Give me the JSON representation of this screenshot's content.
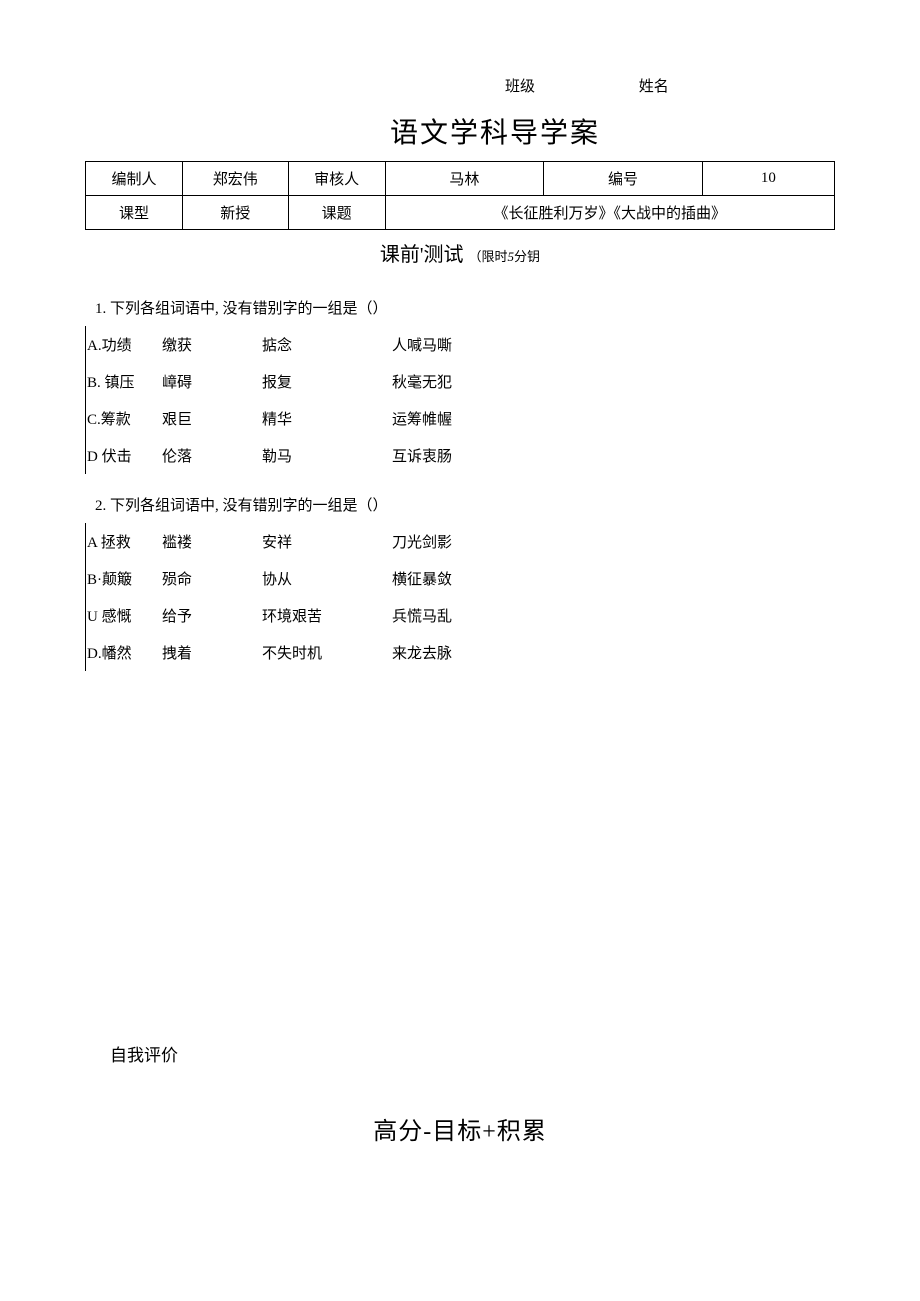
{
  "header": {
    "class_label": "班级",
    "name_label": "姓名"
  },
  "title": "语文学科导学案",
  "info_table": {
    "row1": {
      "c1": "编制人",
      "c2": "郑宏伟",
      "c3": "审核人",
      "c4": "马林",
      "c5": "编号",
      "c6": "10"
    },
    "row2": {
      "c1": "课型",
      "c2": "新授",
      "c3": "课题",
      "c456": "《长征胜利万岁》《大战中的插曲》"
    }
  },
  "pretest": {
    "label_a": "课前'测试",
    "label_b": "（限时",
    "num": "5",
    "label_c": "分钥"
  },
  "q1": {
    "text": "1. 下列各组词语中, 没有错别字的一组是（）",
    "options": [
      {
        "label": "A.功绩",
        "w1": "缴获",
        "w2": "掂念",
        "w3": "人喊马嘶"
      },
      {
        "label": "B. 镇压",
        "w1": "嶂碍",
        "w2": "报复",
        "w3": "秋毫无犯"
      },
      {
        "label": "C.筹款",
        "w1": "艰巨",
        "w2": "精华",
        "w3": "运筹帷幄"
      },
      {
        "label": "D 伏击",
        "w1": "伦落",
        "w2": "勒马",
        "w3": "互诉衷肠"
      }
    ]
  },
  "q2": {
    "text": "2. 下列各组词语中, 没有错别字的一组是（）",
    "options": [
      {
        "label": "A 拯救",
        "w1": "褴褛",
        "w2": "安祥",
        "w3": "刀光剑影"
      },
      {
        "label": "B·颠簸",
        "w1": "殒命",
        "w2": "协从",
        "w3": "横征暴敛"
      },
      {
        "label": "U 感慨",
        "w1": "给予",
        "w2": "环境艰苦",
        "w3": "兵慌马乱"
      },
      {
        "label": "D.幡然",
        "w1": "拽着",
        "w2": "不失时机",
        "w3": "来龙去脉"
      }
    ]
  },
  "self_eval": "自我评价",
  "motto": "高分-目标+积累"
}
